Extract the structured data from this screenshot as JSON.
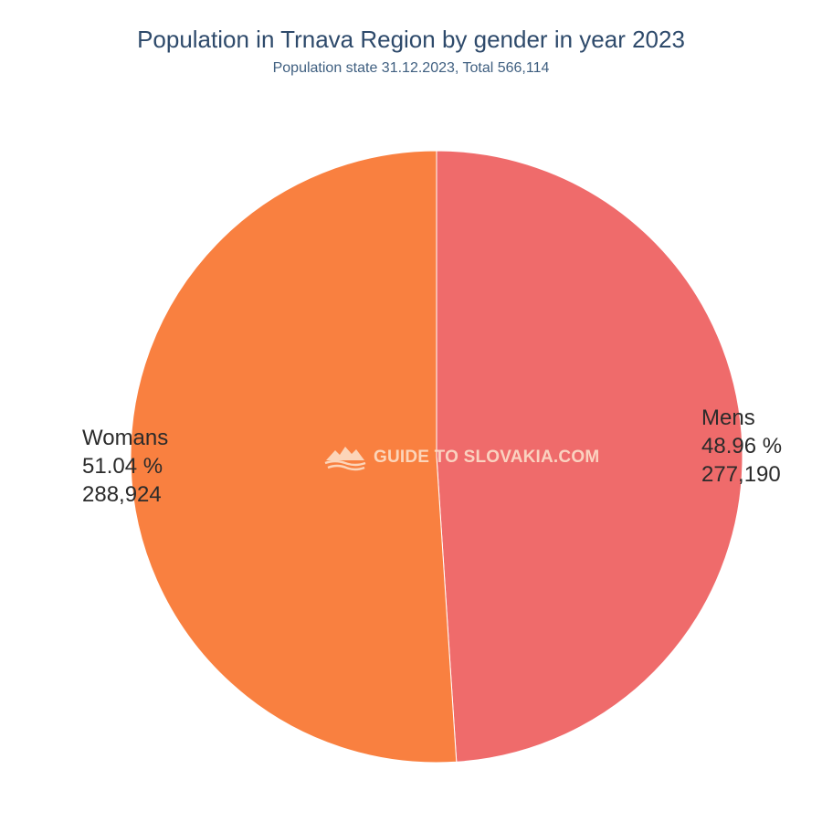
{
  "chart_data": {
    "type": "pie",
    "title": "Population in Trnava Region by gender in year 2023",
    "subtitle": "Population state 31.12.2023, Total 566,114",
    "slices": [
      {
        "label": "Mens",
        "percent_label": "48.96 %",
        "value": 277190,
        "value_label": "277,190",
        "color": "#ef6b6b"
      },
      {
        "label": "Womans",
        "percent_label": "51.04 %",
        "value": 288924,
        "value_label": "288,924",
        "color": "#f98040"
      }
    ],
    "legend": "none",
    "start_angle": "top",
    "direction": "clockwise"
  },
  "watermark": {
    "text": "GUIDE TO SLOVAKIA.COM",
    "icon": "mountain-logo-icon"
  }
}
